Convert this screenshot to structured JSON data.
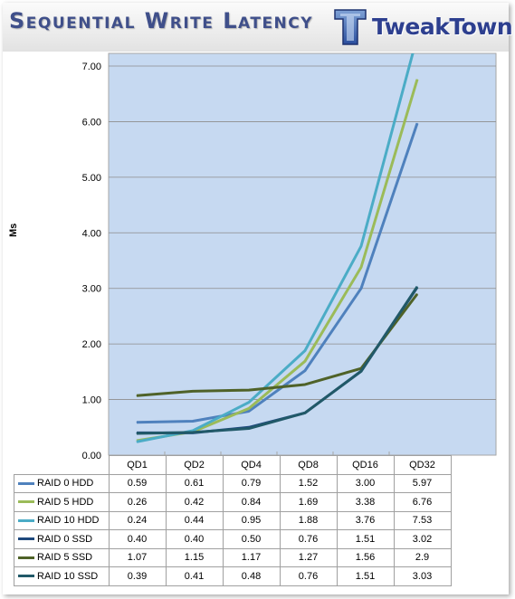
{
  "header": {
    "title": "Sequential Write Latency",
    "logo_text": "TweakTown",
    "logo_icon": "tweaktown-logo-icon"
  },
  "chart_data": {
    "type": "line",
    "title": "Sequential Write Latency",
    "ylabel": "Ms",
    "xlabel": "",
    "categories": [
      "QD1",
      "QD2",
      "QD4",
      "QD8",
      "QD16",
      "QD32"
    ],
    "ylim": [
      0,
      7.0
    ],
    "yticks": [
      "0.00",
      "1.00",
      "2.00",
      "3.00",
      "4.00",
      "5.00",
      "6.00",
      "7.00"
    ],
    "grid": true,
    "legend": "data-table-left",
    "plot_background": "#c6d9f1",
    "series": [
      {
        "name": "RAID 0 HDD",
        "color": "#4f81bd",
        "values": [
          0.59,
          0.61,
          0.79,
          1.52,
          3.0,
          5.97
        ],
        "labels": [
          "0.59",
          "0.61",
          "0.79",
          "1.52",
          "3.00",
          "5.97"
        ]
      },
      {
        "name": "RAID 5 HDD",
        "color": "#9bbb59",
        "values": [
          0.26,
          0.42,
          0.84,
          1.69,
          3.38,
          6.76
        ],
        "labels": [
          "0.26",
          "0.42",
          "0.84",
          "1.69",
          "3.38",
          "6.76"
        ]
      },
      {
        "name": "RAID 10 HDD",
        "color": "#4bacc6",
        "values": [
          0.24,
          0.44,
          0.95,
          1.88,
          3.76,
          7.53
        ],
        "labels": [
          "0.24",
          "0.44",
          "0.95",
          "1.88",
          "3.76",
          "7.53"
        ]
      },
      {
        "name": "RAID 0 SSD",
        "color": "#1f497d",
        "values": [
          0.4,
          0.4,
          0.5,
          0.76,
          1.51,
          3.02
        ],
        "labels": [
          "0.40",
          "0.40",
          "0.50",
          "0.76",
          "1.51",
          "3.02"
        ]
      },
      {
        "name": "RAID 5 SSD",
        "color": "#4f6228",
        "values": [
          1.07,
          1.15,
          1.17,
          1.27,
          1.56,
          2.9
        ],
        "labels": [
          "1.07",
          "1.15",
          "1.17",
          "1.27",
          "1.56",
          "2.9"
        ]
      },
      {
        "name": "RAID 10 SSD",
        "color": "#215968",
        "values": [
          0.39,
          0.41,
          0.48,
          0.76,
          1.51,
          3.03
        ],
        "labels": [
          "0.39",
          "0.41",
          "0.48",
          "0.76",
          "1.51",
          "3.03"
        ]
      }
    ]
  }
}
